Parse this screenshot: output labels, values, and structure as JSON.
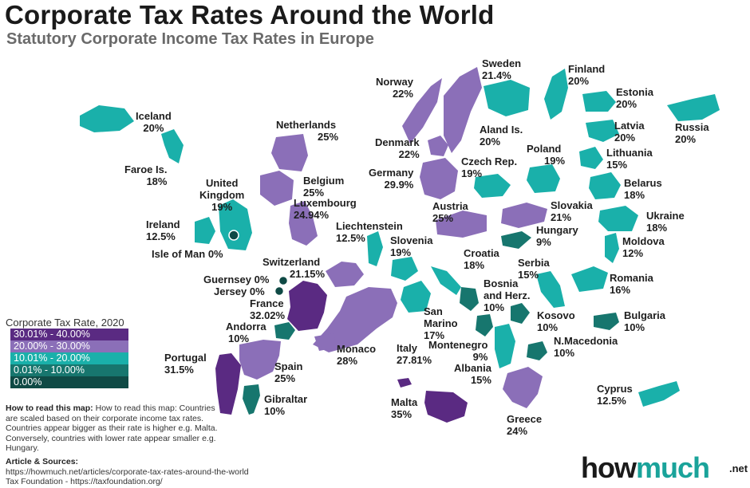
{
  "header": {
    "title": "Corporate Tax Rates Around the World",
    "subtitle": "Statutory Corporate Income Tax Rates in Europe"
  },
  "legend": {
    "title": "Corporate Tax Rate, 2020",
    "items": [
      {
        "label": "30.01% - 40.00%",
        "color": "#5a2a82"
      },
      {
        "label": "20.00% - 30.00%",
        "color": "#8b6fb8"
      },
      {
        "label": "10.01% - 20.00%",
        "color": "#1ab0aa"
      },
      {
        "label": "0.01% - 10.00%",
        "color": "#17766e"
      },
      {
        "label": "0.00%",
        "color": "#0f4a45"
      }
    ]
  },
  "countries": {
    "iceland": {
      "name": "Iceland",
      "rate": "20%"
    },
    "faroe": {
      "name": "Faroe Is.",
      "rate": "18%"
    },
    "uk": {
      "name1": "United",
      "name2": "Kingdom",
      "rate": "19%"
    },
    "ireland": {
      "name": "Ireland",
      "rate": "12.5%"
    },
    "isle_of_man": {
      "name": "Isle of Man",
      "rate": "0%"
    },
    "netherlands": {
      "name": "Netherlands",
      "rate": "25%"
    },
    "belgium": {
      "name": "Belgium",
      "rate": "25%"
    },
    "luxembourg": {
      "name": "Luxembourg",
      "rate": "24.94%"
    },
    "liechtenstein": {
      "name": "Liechtenstein",
      "rate": "12.5%"
    },
    "switzerland": {
      "name": "Switzerland",
      "rate": "21.15%"
    },
    "guernsey": {
      "name": "Guernsey",
      "rate": "0%"
    },
    "jersey": {
      "name": "Jersey",
      "rate": "0%"
    },
    "france": {
      "name": "France",
      "rate": "32.02%"
    },
    "andorra": {
      "name": "Andorra",
      "rate": "10%"
    },
    "portugal": {
      "name": "Portugal",
      "rate": "31.5%"
    },
    "spain": {
      "name": "Spain",
      "rate": "25%"
    },
    "gibraltar": {
      "name": "Gibraltar",
      "rate": "10%"
    },
    "monaco": {
      "name": "Monaco",
      "rate": "28%"
    },
    "italy": {
      "name": "Italy",
      "rate": "27.81%"
    },
    "san_marino": {
      "name": "San",
      "name2": "Marino",
      "rate": "17%"
    },
    "malta": {
      "name": "Malta",
      "rate": "35%"
    },
    "norway": {
      "name": "Norway",
      "rate": "22%"
    },
    "sweden": {
      "name": "Sweden",
      "rate": "21.4%"
    },
    "finland": {
      "name": "Finland",
      "rate": "20%"
    },
    "estonia": {
      "name": "Estonia",
      "rate": "20%"
    },
    "russia": {
      "name": "Russia",
      "rate": "20%"
    },
    "denmark": {
      "name": "Denmark",
      "rate": "22%"
    },
    "aland": {
      "name": "Aland Is.",
      "rate": "20%"
    },
    "latvia": {
      "name": "Latvia",
      "rate": "20%"
    },
    "lithuania": {
      "name": "Lithuania",
      "rate": "15%"
    },
    "germany": {
      "name": "Germany",
      "rate": "29.9%"
    },
    "czech": {
      "name": "Czech Rep.",
      "rate": "19%"
    },
    "poland": {
      "name": "Poland",
      "rate": "19%"
    },
    "belarus": {
      "name": "Belarus",
      "rate": "18%"
    },
    "austria": {
      "name": "Austria",
      "rate": "25%"
    },
    "slovakia": {
      "name": "Slovakia",
      "rate": "21%"
    },
    "ukraine": {
      "name": "Ukraine",
      "rate": "18%"
    },
    "hungary": {
      "name": "Hungary",
      "rate": "9%"
    },
    "moldova": {
      "name": "Moldova",
      "rate": "12%"
    },
    "slovenia": {
      "name": "Slovenia",
      "rate": "19%"
    },
    "croatia": {
      "name": "Croatia",
      "rate": "18%"
    },
    "serbia": {
      "name": "Serbia",
      "rate": "15%"
    },
    "romania": {
      "name": "Romania",
      "rate": "16%"
    },
    "bosnia": {
      "name1": "Bosnia",
      "name2": "and Herz.",
      "rate": "10%"
    },
    "kosovo": {
      "name": "Kosovo",
      "rate": "10%"
    },
    "bulgaria": {
      "name": "Bulgaria",
      "rate": "10%"
    },
    "montenegro": {
      "name": "Montenegro",
      "rate": "9%"
    },
    "n_macedonia": {
      "name": "N.Macedonia",
      "rate": "10%"
    },
    "albania": {
      "name": "Albania",
      "rate": "15%"
    },
    "greece": {
      "name": "Greece",
      "rate": "24%"
    },
    "cyprus": {
      "name": "Cyprus",
      "rate": "12.5%"
    }
  },
  "howto": {
    "heading": "How to read this map:",
    "text": "How to read this map: Countries are scaled based on their corporate income tax rates. Countries appear bigger as their rate is higher e.g. Malta. Conversely, countries with lower rate appear smaller e.g. Hungary."
  },
  "sources": {
    "heading": "Article & Sources:",
    "line1": "https://howmuch.net/articles/corporate-tax-rates-around-the-world",
    "line2": "Tax Foundation - https://taxfoundation.org/"
  },
  "logo": {
    "how": "how",
    "much": "much",
    "net": ".net"
  }
}
